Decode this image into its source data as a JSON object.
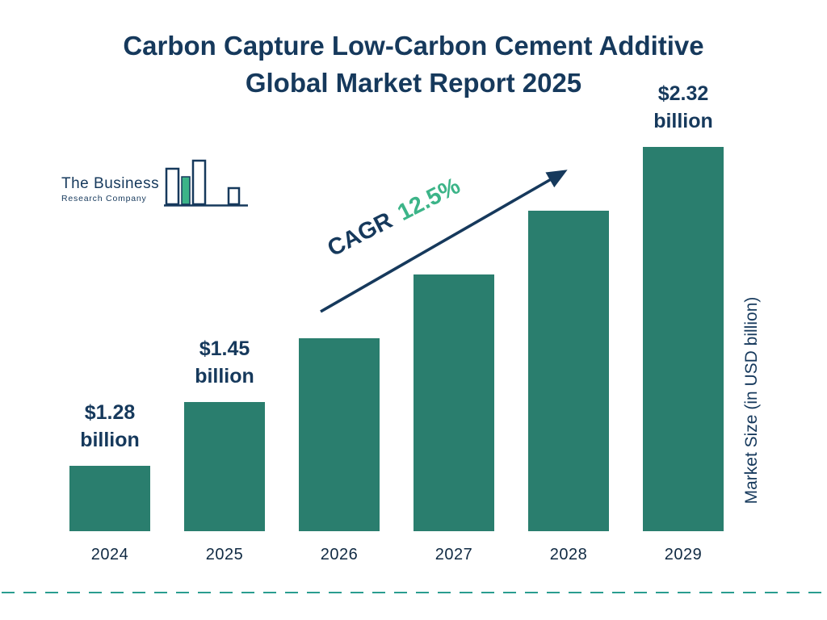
{
  "title": {
    "line1": "Carbon Capture Low-Carbon Cement Additive",
    "line2": "Global Market Report 2025"
  },
  "logo": {
    "line1": "The Business",
    "line2": "Research Company"
  },
  "cagr": {
    "prefix": "CAGR",
    "value": "12.5%"
  },
  "y_axis_label": "Market Size (in USD billion)",
  "colors": {
    "title_navy": "#16395c",
    "bar_teal": "#2a7e6e",
    "cagr_green": "#3cb488",
    "divider_teal": "#2a9d8f"
  },
  "chart_data": {
    "type": "bar",
    "title": "Carbon Capture Low-Carbon Cement Additive Global Market Report 2025",
    "categories": [
      "2024",
      "2025",
      "2026",
      "2027",
      "2028",
      "2029"
    ],
    "values": [
      1.28,
      1.45,
      1.63,
      1.83,
      2.06,
      2.32
    ],
    "bar_labels": [
      "$1.28 billion",
      "$1.45 billion",
      "",
      "",
      "",
      "$2.32 billion"
    ],
    "unit": "USD billion",
    "xlabel": "",
    "ylabel": "Market Size (in USD billion)",
    "cagr_annotation": "CAGR 12.5%",
    "bar_color": "#2a7e6e",
    "legend": "none",
    "grid": false
  }
}
